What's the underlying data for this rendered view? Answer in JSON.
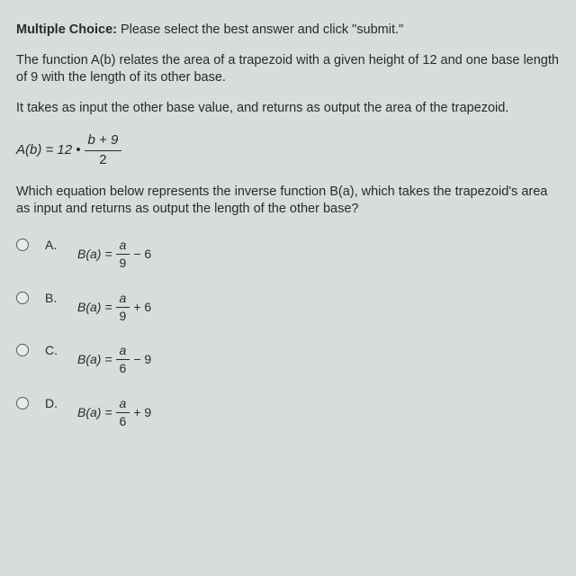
{
  "colors": {
    "background": "#d8dcda",
    "text": "#2a2a2a",
    "radio_border": "#5a5a5a"
  },
  "typography": {
    "body_fontsize": 14.5,
    "equation_fontsize": 15
  },
  "header": {
    "label": "Multiple Choice:",
    "instruction": " Please select the best answer and click \"submit.\""
  },
  "paras": {
    "p1": "The function A(b) relates the area of a trapezoid with a given height of 12 and one base length of 9 with the length of its other base.",
    "p2": "It takes as input the other base value, and returns as output the area of the trapezoid."
  },
  "main_eq": {
    "lhs": "A(b) = 12 •",
    "num": "b + 9",
    "den": "2"
  },
  "question": "Which equation below represents the inverse function B(a), which takes the trapezoid's area as input and returns as output the length of the other base?",
  "options": [
    {
      "letter": "A.",
      "lhs": "B(a) = ",
      "num": "a",
      "den": "9",
      "tail": " − 6"
    },
    {
      "letter": "B.",
      "lhs": "B(a) = ",
      "num": "a",
      "den": "9",
      "tail": " + 6"
    },
    {
      "letter": "C.",
      "lhs": "B(a) = ",
      "num": "a",
      "den": "6",
      "tail": " − 9"
    },
    {
      "letter": "D.",
      "lhs": "B(a) = ",
      "num": "a",
      "den": "6",
      "tail": " + 9"
    }
  ]
}
